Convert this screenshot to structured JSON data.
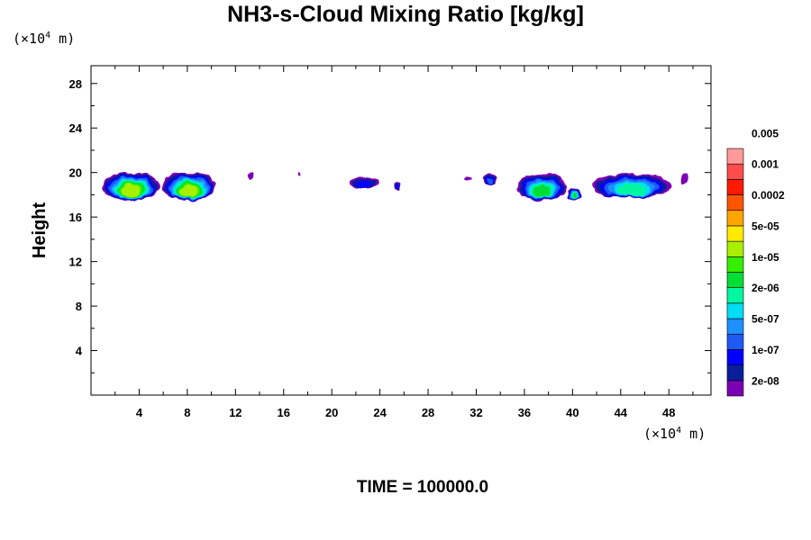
{
  "chart_data": {
    "type": "heatmap",
    "title": "NH3-s-Cloud Mixing Ratio [kg/kg]",
    "ylabel": "Height",
    "xlabel": "",
    "x_scale_prefix": "(×10",
    "x_scale_exp": "4",
    "x_scale_suffix": " m)",
    "y_scale_prefix": "(×10",
    "y_scale_exp": "4",
    "y_scale_suffix": " m)",
    "xlim": [
      0,
      51.5
    ],
    "ylim": [
      0,
      29.6
    ],
    "x_ticks": [
      4,
      8,
      12,
      16,
      20,
      24,
      28,
      32,
      36,
      40,
      44,
      48
    ],
    "y_ticks": [
      4,
      8,
      12,
      16,
      20,
      24,
      28
    ],
    "time_label": "TIME = 100000.0",
    "colorbar": {
      "colors": [
        "#7b00b4",
        "#0a1e9c",
        "#0000ff",
        "#1f5af5",
        "#1e90ff",
        "#00ddf5",
        "#00f7a0",
        "#00dd35",
        "#36ee00",
        "#a8f000",
        "#ffeb00",
        "#ffa500",
        "#ff5500",
        "#ff1a00",
        "#ff4d4d",
        "#ff9a9a"
      ],
      "labels": [
        "2e-08",
        "1e-07",
        "5e-07",
        "2e-06",
        "1e-05",
        "5e-05",
        "0.0002",
        "0.001",
        "0.005"
      ]
    },
    "clouds": [
      {
        "x": [
          0.9,
          5.7
        ],
        "z": [
          17.5,
          20.0
        ],
        "level": 9
      },
      {
        "x": [
          5.9,
          10.4
        ],
        "z": [
          17.5,
          20.0
        ],
        "level": 9
      },
      {
        "x": [
          13.1,
          13.5
        ],
        "z": [
          19.3,
          19.9
        ],
        "level": 0
      },
      {
        "x": [
          17.1,
          17.3
        ],
        "z": [
          19.6,
          20.0
        ],
        "level": 0
      },
      {
        "x": [
          21.5,
          23.9
        ],
        "z": [
          18.6,
          19.6
        ],
        "level": 2
      },
      {
        "x": [
          25.1,
          25.8
        ],
        "z": [
          18.4,
          19.2
        ],
        "level": 2
      },
      {
        "x": [
          31.0,
          31.6
        ],
        "z": [
          19.3,
          19.7
        ],
        "level": 0
      },
      {
        "x": [
          32.6,
          33.7
        ],
        "z": [
          18.8,
          19.8
        ],
        "level": 3
      },
      {
        "x": [
          35.4,
          39.5
        ],
        "z": [
          17.5,
          19.9
        ],
        "level": 7
      },
      {
        "x": [
          39.5,
          40.7
        ],
        "z": [
          17.5,
          18.6
        ],
        "level": 7
      },
      {
        "x": [
          41.6,
          48.2
        ],
        "z": [
          17.7,
          19.9
        ],
        "level": 6
      },
      {
        "x": [
          49.0,
          49.6
        ],
        "z": [
          19.0,
          19.9
        ],
        "level": 0
      }
    ]
  }
}
